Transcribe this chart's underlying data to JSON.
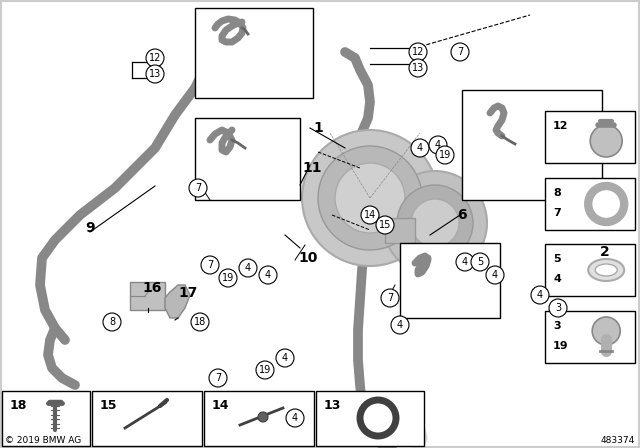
{
  "bg_color": "#ffffff",
  "part_number": "483374",
  "copyright": "© 2019 BMW AG",
  "fig_width": 6.4,
  "fig_height": 4.48,
  "dpi": 100,
  "hose_color": "#888888",
  "turbo_color": "#b0b0b0",
  "turbo_dark": "#888888",
  "line_color": "#000000",
  "callout_bg": "#ffffff",
  "callout_edge": "#000000"
}
